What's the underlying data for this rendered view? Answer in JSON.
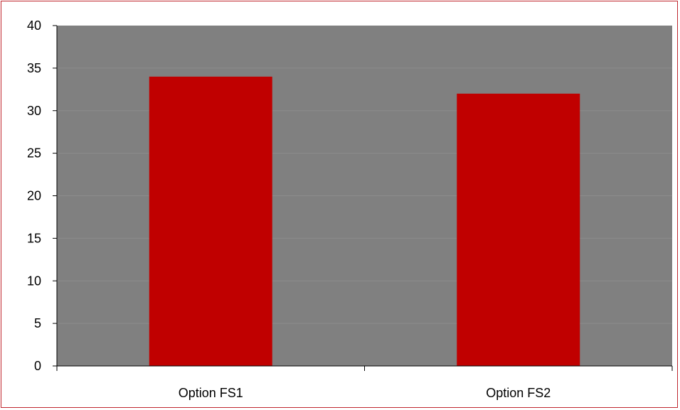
{
  "chart_data": {
    "type": "bar",
    "categories": [
      "Option FS1",
      "Option FS2"
    ],
    "series": [
      {
        "values": [
          34,
          32
        ],
        "color": "#c00000"
      }
    ],
    "title": "",
    "xlabel": "",
    "ylabel": "",
    "ylim": [
      0,
      40
    ],
    "yticks": [
      "0",
      "5",
      "10",
      "15",
      "20",
      "25",
      "30",
      "35",
      "40"
    ],
    "grid": true,
    "legend": "none",
    "plot_background": "#808080",
    "gridline_color": "#8c8c8c",
    "border_color": "#c0282f"
  }
}
